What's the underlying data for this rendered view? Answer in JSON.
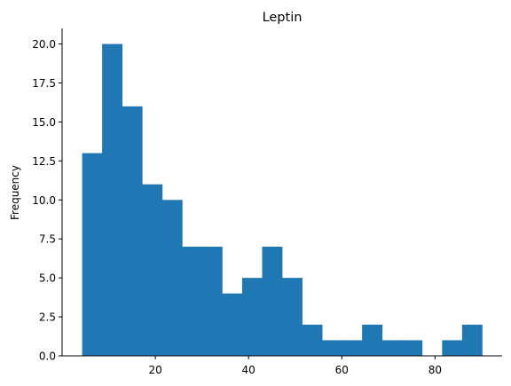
{
  "chart_data": {
    "type": "bar",
    "title": "Leptin",
    "xlabel": "",
    "ylabel": "Frequency",
    "bin_edges": [
      4.3,
      8.59,
      12.88,
      17.17,
      21.46,
      25.75,
      30.04,
      34.33,
      38.62,
      42.91,
      47.2,
      51.49,
      55.78,
      60.07,
      64.36,
      68.65,
      72.94,
      77.23,
      81.52,
      85.81,
      90.1
    ],
    "values": [
      13,
      20,
      16,
      11,
      10,
      7,
      7,
      4,
      5,
      7,
      5,
      2,
      1,
      1,
      2,
      1,
      1,
      0,
      1,
      2
    ],
    "xlim": [
      0.0,
      94.4
    ],
    "ylim": [
      0,
      21
    ],
    "xticks": [
      20,
      40,
      60,
      80
    ],
    "yticks": [
      0.0,
      2.5,
      5.0,
      7.5,
      10.0,
      12.5,
      15.0,
      17.5,
      20.0
    ],
    "ytick_labels": [
      "0.0",
      "2.5",
      "5.0",
      "7.5",
      "10.0",
      "12.5",
      "15.0",
      "17.5",
      "20.0"
    ],
    "bar_color": "#1f77b4",
    "grid": false,
    "spines": "left-bottom"
  }
}
